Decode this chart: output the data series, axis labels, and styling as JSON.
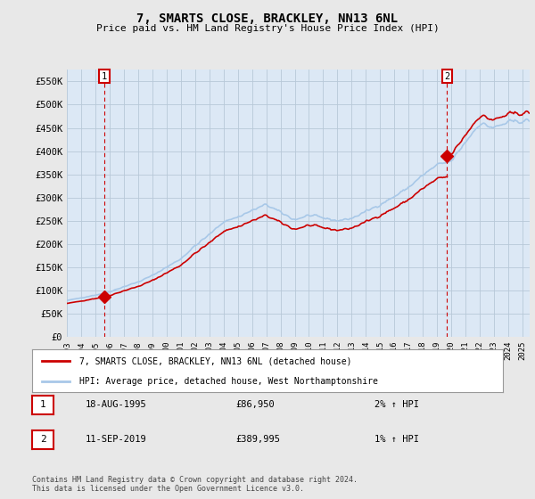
{
  "title": "7, SMARTS CLOSE, BRACKLEY, NN13 6NL",
  "subtitle": "Price paid vs. HM Land Registry's House Price Index (HPI)",
  "xlim": [
    1993.0,
    2025.5
  ],
  "ylim": [
    0,
    575000
  ],
  "yticks": [
    0,
    50000,
    100000,
    150000,
    200000,
    250000,
    300000,
    350000,
    400000,
    450000,
    500000,
    550000
  ],
  "ytick_labels": [
    "£0",
    "£50K",
    "£100K",
    "£150K",
    "£200K",
    "£250K",
    "£300K",
    "£350K",
    "£400K",
    "£450K",
    "£500K",
    "£550K"
  ],
  "xtick_years": [
    1993,
    1994,
    1995,
    1996,
    1997,
    1998,
    1999,
    2000,
    2001,
    2002,
    2003,
    2004,
    2005,
    2006,
    2007,
    2008,
    2009,
    2010,
    2011,
    2012,
    2013,
    2014,
    2015,
    2016,
    2017,
    2018,
    2019,
    2020,
    2021,
    2022,
    2023,
    2024,
    2025
  ],
  "sale1_x": 1995.63,
  "sale1_y": 86950,
  "sale2_x": 2019.7,
  "sale2_y": 389995,
  "hpi_color": "#a8c8e8",
  "price_color": "#cc0000",
  "bg_color": "#e8e8e8",
  "plot_bg": "#dce8f5",
  "grid_color": "#b8c8d8",
  "legend_label_red": "7, SMARTS CLOSE, BRACKLEY, NN13 6NL (detached house)",
  "legend_label_blue": "HPI: Average price, detached house, West Northamptonshire",
  "table_row1": [
    "1",
    "18-AUG-1995",
    "£86,950",
    "2% ↑ HPI"
  ],
  "table_row2": [
    "2",
    "11-SEP-2019",
    "£389,995",
    "1% ↑ HPI"
  ],
  "footer": "Contains HM Land Registry data © Crown copyright and database right 2024.\nThis data is licensed under the Open Government Licence v3.0."
}
